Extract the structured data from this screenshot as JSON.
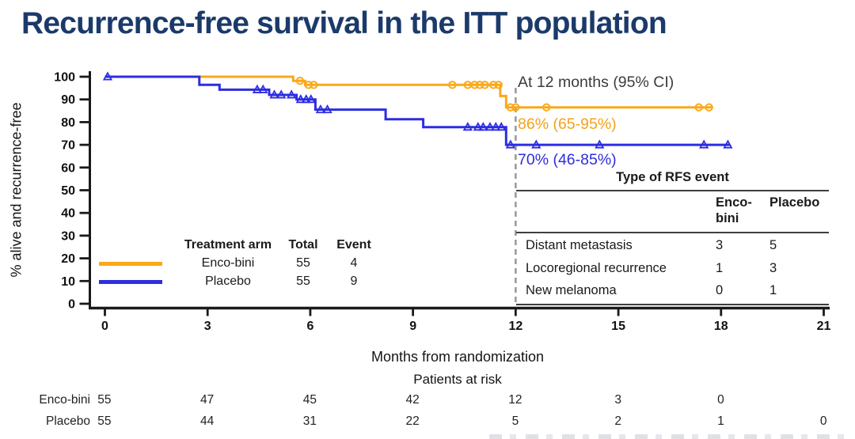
{
  "chart_data": {
    "type": "line",
    "subtype": "kaplan-meier-step",
    "title": "Recurrence-free survival in the ITT population",
    "xlabel": "Months from randomization",
    "ylabel": "% alive and recurrence-free",
    "xlim": [
      0,
      21
    ],
    "ylim": [
      0,
      100
    ],
    "xticks": [
      0,
      3,
      6,
      9,
      12,
      15,
      18,
      21
    ],
    "yticks": [
      0,
      10,
      20,
      30,
      40,
      50,
      60,
      70,
      80,
      90,
      100
    ],
    "grid": false,
    "reference_line_month": 12,
    "annotation": {
      "title": "At 12 months (95% CI)",
      "values": [
        {
          "series": "Enco-bini",
          "label": "86% (65-95%)",
          "color": "#f5a11a"
        },
        {
          "series": "Placebo",
          "label": "70% (46-85%)",
          "color": "#2d2de1"
        }
      ]
    },
    "series": [
      {
        "name": "Enco-bini",
        "color": "#f9a91b",
        "marker": "circle",
        "total": 55,
        "events": 4,
        "survival_at_12_months": "86% (65-95%)",
        "steps": [
          [
            0,
            100
          ],
          [
            5.5,
            100
          ],
          [
            5.5,
            98.2
          ],
          [
            5.85,
            98.2
          ],
          [
            5.85,
            96.4
          ],
          [
            11.55,
            96.4
          ],
          [
            11.55,
            91.5
          ],
          [
            11.72,
            91.5
          ],
          [
            11.72,
            86.5
          ],
          [
            17.75,
            86.5
          ]
        ],
        "censor_marks": [
          [
            5.7,
            98.2
          ],
          [
            5.95,
            96.4
          ],
          [
            6.1,
            96.4
          ],
          [
            10.15,
            96.4
          ],
          [
            10.6,
            96.4
          ],
          [
            10.8,
            96.4
          ],
          [
            10.95,
            96.4
          ],
          [
            11.1,
            96.4
          ],
          [
            11.35,
            96.4
          ],
          [
            11.5,
            96.4
          ],
          [
            11.85,
            86.5
          ],
          [
            12.0,
            86.5
          ],
          [
            12.9,
            86.5
          ],
          [
            17.35,
            86.5
          ],
          [
            17.65,
            86.5
          ]
        ]
      },
      {
        "name": "Placebo",
        "color": "#2d2de1",
        "marker": "triangle",
        "total": 55,
        "events": 9,
        "survival_at_12_months": "70% (46-85%)",
        "steps": [
          [
            0,
            100
          ],
          [
            2.76,
            100
          ],
          [
            2.76,
            96.4
          ],
          [
            3.35,
            96.4
          ],
          [
            3.35,
            94.3
          ],
          [
            4.8,
            94.3
          ],
          [
            4.8,
            92
          ],
          [
            5.6,
            92
          ],
          [
            5.6,
            90
          ],
          [
            6.15,
            90
          ],
          [
            6.15,
            85.5
          ],
          [
            8.2,
            85.5
          ],
          [
            8.2,
            81.3
          ],
          [
            9.3,
            81.3
          ],
          [
            9.3,
            77.8
          ],
          [
            11.72,
            77.8
          ],
          [
            11.72,
            70
          ],
          [
            18.25,
            70
          ]
        ],
        "censor_marks": [
          [
            0.08,
            100
          ],
          [
            4.45,
            94.3
          ],
          [
            4.62,
            94.3
          ],
          [
            4.95,
            92
          ],
          [
            5.15,
            92
          ],
          [
            5.45,
            92
          ],
          [
            5.72,
            90
          ],
          [
            5.88,
            90
          ],
          [
            6.02,
            90
          ],
          [
            6.3,
            85.5
          ],
          [
            6.5,
            85.5
          ],
          [
            10.6,
            77.8
          ],
          [
            10.9,
            77.8
          ],
          [
            11.05,
            77.8
          ],
          [
            11.25,
            77.8
          ],
          [
            11.42,
            77.8
          ],
          [
            11.58,
            77.8
          ],
          [
            11.85,
            70
          ],
          [
            12.6,
            70
          ],
          [
            14.45,
            70
          ],
          [
            17.5,
            70
          ],
          [
            18.2,
            70
          ]
        ]
      }
    ]
  },
  "legend": {
    "headers": [
      "Treatment arm",
      "Total",
      "Event"
    ],
    "rows": [
      {
        "name": "Enco-bini",
        "total": "55",
        "events": "4",
        "color": "#f9a91b"
      },
      {
        "name": "Placebo",
        "total": "55",
        "events": "9",
        "color": "#2d2de1"
      }
    ]
  },
  "rfs_table": {
    "title": "Type of RFS event",
    "columns": [
      "Enco-bini",
      "Placebo"
    ],
    "rows": [
      {
        "label": "Distant metastasis",
        "values": [
          "3",
          "5"
        ]
      },
      {
        "label": "Locoregional recurrence",
        "values": [
          "1",
          "3"
        ]
      },
      {
        "label": "New melanoma",
        "values": [
          "0",
          "1"
        ]
      }
    ]
  },
  "risk": {
    "title": "Patients at risk",
    "rows": [
      {
        "label": "Enco-bini",
        "values": [
          "55",
          "47",
          "45",
          "42",
          "12",
          "3",
          "0"
        ]
      },
      {
        "label": "Placebo",
        "values": [
          "55",
          "44",
          "31",
          "22",
          "5",
          "2",
          "1",
          "0"
        ]
      }
    ]
  },
  "colors": {
    "title_navy": "#1b3a6b",
    "axis_black": "#1a1a1a",
    "dashed_gray": "#9b9b9b",
    "enco_bini_orange": "#f9a91b",
    "placebo_blue": "#2d2de1"
  }
}
